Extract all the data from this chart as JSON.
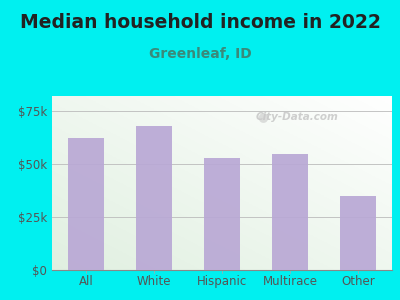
{
  "title": "Median household income in 2022",
  "subtitle": "Greenleaf, ID",
  "categories": [
    "All",
    "White",
    "Hispanic",
    "Multirace",
    "Other"
  ],
  "values": [
    62000,
    68000,
    53000,
    54500,
    35000
  ],
  "bar_color": "#b9a8d5",
  "background_outer": "#00f0f0",
  "background_inner_tl": "#d8ecd8",
  "background_inner_br": "#f8f8ff",
  "title_color": "#222222",
  "subtitle_color": "#3a8a7a",
  "tick_color": "#555555",
  "ytick_labels": [
    "$0",
    "$25k",
    "$50k",
    "$75k"
  ],
  "ytick_values": [
    0,
    25000,
    50000,
    75000
  ],
  "ylim": [
    0,
    82000
  ],
  "watermark": "City-Data.com",
  "title_fontsize": 13.5,
  "subtitle_fontsize": 10,
  "tick_fontsize": 8.5
}
